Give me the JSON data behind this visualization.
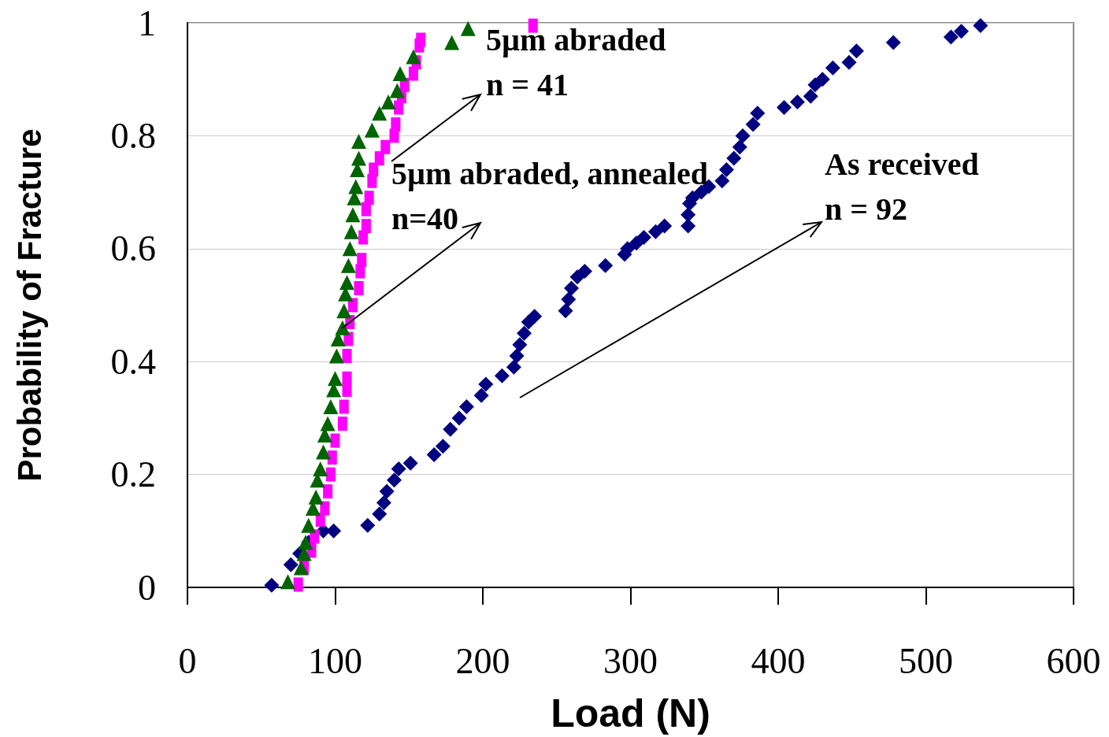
{
  "chart_data": {
    "type": "scatter",
    "xlabel": "Load (N)",
    "ylabel": "Probability of Fracture",
    "xlim": [
      0,
      600
    ],
    "xticks": [
      0,
      100,
      200,
      300,
      400,
      500,
      600
    ],
    "ylim": [
      0,
      1
    ],
    "yticks": [
      0,
      0.2,
      0.4,
      0.6,
      0.8,
      1
    ],
    "grid": "y",
    "annotations": [
      "5µm abraded\nn = 41",
      {
        "text": "5µm abraded, annealed\nn=40",
        "x": 105,
        "y": 0.46
      },
      "As received\nn = 92"
    ],
    "series": [
      {
        "color": "#000080",
        "marker": "diamond",
        "x": [
          57,
          70,
          76,
          82,
          92,
          99,
          122,
          130,
          133,
          135,
          140,
          143,
          151,
          167,
          173,
          178,
          184,
          189,
          199,
          202,
          213,
          221,
          223,
          225,
          228,
          231,
          235,
          256,
          258,
          260,
          264,
          269,
          283,
          296,
          298,
          304,
          309,
          317,
          323,
          339,
          339,
          340,
          342,
          348,
          353,
          362,
          365,
          370,
          374,
          376,
          383,
          386,
          404,
          413,
          422,
          425,
          430,
          437,
          448,
          453,
          478,
          517,
          524,
          537
        ],
        "values": [
          0.004,
          0.04,
          0.06,
          0.08,
          0.1,
          0.1,
          0.11,
          0.13,
          0.15,
          0.17,
          0.19,
          0.21,
          0.22,
          0.235,
          0.25,
          0.28,
          0.3,
          0.32,
          0.34,
          0.36,
          0.375,
          0.39,
          0.41,
          0.43,
          0.45,
          0.47,
          0.48,
          0.49,
          0.51,
          0.53,
          0.55,
          0.56,
          0.57,
          0.59,
          0.6,
          0.61,
          0.62,
          0.63,
          0.64,
          0.64,
          0.66,
          0.68,
          0.69,
          0.7,
          0.71,
          0.72,
          0.74,
          0.76,
          0.78,
          0.8,
          0.82,
          0.84,
          0.85,
          0.86,
          0.87,
          0.89,
          0.9,
          0.92,
          0.93,
          0.95,
          0.965,
          0.975,
          0.985,
          0.995
        ]
      },
      {
        "color": "#ff00ff",
        "marker": "square",
        "x": [
          75,
          79,
          84,
          86,
          90,
          93,
          95,
          97,
          98,
          100,
          105,
          106,
          108,
          108,
          108,
          109,
          110,
          112,
          116,
          117,
          118,
          119,
          121,
          121,
          123,
          125,
          126,
          130,
          134,
          140,
          141,
          143,
          145,
          147,
          153,
          155,
          157,
          158,
          234
        ],
        "values": [
          0.005,
          0.035,
          0.065,
          0.09,
          0.12,
          0.14,
          0.17,
          0.2,
          0.23,
          0.26,
          0.29,
          0.32,
          0.35,
          0.37,
          0.41,
          0.44,
          0.47,
          0.5,
          0.53,
          0.56,
          0.58,
          0.62,
          0.64,
          0.67,
          0.69,
          0.72,
          0.74,
          0.76,
          0.78,
          0.8,
          0.82,
          0.85,
          0.87,
          0.89,
          0.91,
          0.93,
          0.96,
          0.97,
          0.995
        ]
      },
      {
        "color": "#006400",
        "marker": "triangle",
        "x": [
          68,
          77,
          79,
          80,
          82,
          85,
          87,
          88,
          90,
          92,
          93,
          95,
          97,
          99,
          100,
          101,
          102,
          105,
          106,
          107,
          108,
          109,
          110,
          111,
          112,
          113,
          114,
          115,
          116,
          116,
          125,
          130,
          136,
          142,
          144,
          153,
          179,
          190
        ],
        "values": [
          0.01,
          0.035,
          0.06,
          0.08,
          0.11,
          0.14,
          0.16,
          0.19,
          0.21,
          0.24,
          0.27,
          0.29,
          0.32,
          0.35,
          0.37,
          0.41,
          0.44,
          0.46,
          0.49,
          0.52,
          0.54,
          0.57,
          0.6,
          0.63,
          0.66,
          0.69,
          0.71,
          0.74,
          0.76,
          0.79,
          0.81,
          0.84,
          0.86,
          0.88,
          0.91,
          0.94,
          0.965,
          0.99
        ]
      }
    ]
  }
}
